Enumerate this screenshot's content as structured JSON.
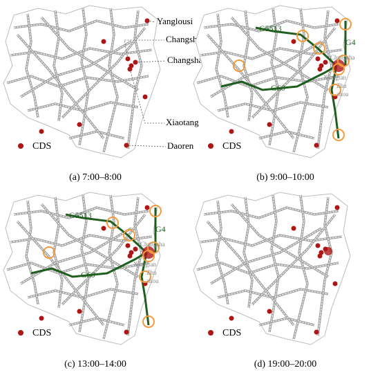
{
  "panels": [
    {
      "caption": "(a) 7:00–8:00",
      "legend": "CDS",
      "labels": [
        "Yanglousi",
        "Changshaxi",
        "Changsha",
        "Xiaotang",
        "Daoren"
      ]
    },
    {
      "caption": "(b) 9:00–10:00",
      "legend": "CDS",
      "labels": [
        "G5513",
        "G4",
        "Changsha",
        "Xiangtan",
        "Zhu",
        "zhou",
        "G60"
      ]
    },
    {
      "caption": "(c) 13:00–14:00",
      "legend": "CDS",
      "labels": [
        "G5513",
        "G4",
        "Changsha",
        "Xiangtan",
        "Zhu",
        "zhou",
        "G60"
      ]
    },
    {
      "caption": "(d) 19:00–20:00",
      "legend": "CDS",
      "labels": []
    }
  ]
}
